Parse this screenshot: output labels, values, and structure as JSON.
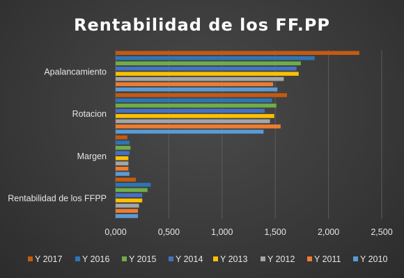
{
  "chart_data": {
    "type": "bar",
    "orientation": "horizontal",
    "title": "Rentabilidad de los FF.PP",
    "categories": [
      "Apalancamiento",
      "Rotacion",
      "Margen",
      "Rentabilidad de los FFPP"
    ],
    "xlim": [
      0,
      2.5
    ],
    "x_ticks": [
      "0,000",
      "0,500",
      "1,000",
      "1,500",
      "2,000",
      "2,500"
    ],
    "grid": true,
    "legend_position": "bottom",
    "series": [
      {
        "name": "Y 2017",
        "color": "#c55a11",
        "values": [
          2.29,
          1.61,
          0.11,
          0.19
        ]
      },
      {
        "name": "Y 2016",
        "color": "#2e75b6",
        "values": [
          1.87,
          1.47,
          0.13,
          0.33
        ]
      },
      {
        "name": "Y 2015",
        "color": "#70ad47",
        "values": [
          1.74,
          1.51,
          0.14,
          0.3
        ]
      },
      {
        "name": "Y 2014",
        "color": "#4472c4",
        "values": [
          1.7,
          1.4,
          0.13,
          0.25
        ]
      },
      {
        "name": "Y 2013",
        "color": "#ffc000",
        "values": [
          1.72,
          1.49,
          0.12,
          0.25
        ]
      },
      {
        "name": "Y 2012",
        "color": "#a5a5a5",
        "values": [
          1.58,
          1.45,
          0.12,
          0.22
        ]
      },
      {
        "name": "Y 2011",
        "color": "#ed7d31",
        "values": [
          1.48,
          1.55,
          0.12,
          0.21
        ]
      },
      {
        "name": "Y 2010",
        "color": "#5b9bd5",
        "values": [
          1.52,
          1.39,
          0.13,
          0.21
        ]
      }
    ]
  }
}
